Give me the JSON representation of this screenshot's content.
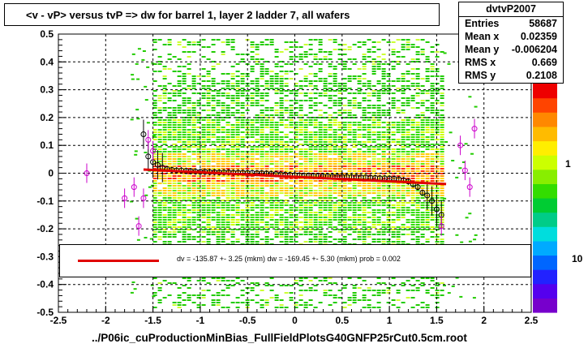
{
  "chart_data": {
    "type": "scatter",
    "title": "<v - vP>       versus  tvP =>  dw for barrel 1, layer 2 ladder 7, all wafers",
    "xlabel": "../P06ic_cuProductionMinBias_FullFieldPlotsG40GNFP25rCut0.5cm.root",
    "ylabel": "",
    "xlim": [
      -2.5,
      2.5
    ],
    "ylim": [
      -0.5,
      0.5
    ],
    "x_ticks": [
      "-2.5",
      "-2",
      "-1.5",
      "-1",
      "-0.5",
      "0",
      "0.5",
      "1",
      "1.5",
      "2",
      "2.5"
    ],
    "y_ticks": [
      "-0.5",
      "-0.4",
      "-0.3",
      "-0.2",
      "-0.1",
      "0",
      "0.1",
      "0.2",
      "0.3",
      "0.4",
      "0.5"
    ],
    "grid": true,
    "colorbar_labels": [
      "1",
      "10"
    ],
    "stats": {
      "name": "dvtvP2007",
      "rows": [
        {
          "label": "Entries",
          "value": "58687"
        },
        {
          "label": "Mean x",
          "value": "0.02359"
        },
        {
          "label": "Mean y",
          "value": "-0.006204"
        },
        {
          "label": "RMS x",
          "value": "0.669"
        },
        {
          "label": "RMS y",
          "value": "0.2108"
        }
      ]
    },
    "fit_text": "dv = -135.87 +- 3.25 (mkm) dw = -169.45 +- 5.30 (mkm) prob = 0.002",
    "fit_line": {
      "color": "#e00000",
      "x": [
        -1.6,
        1.6
      ],
      "y": [
        0.013,
        -0.039
      ]
    },
    "profile_black": {
      "x": [
        -1.6,
        -1.55,
        -1.5,
        -1.45,
        -1.4,
        -1.35,
        -1.3,
        -1.25,
        -1.2,
        -1.15,
        -1.1,
        -1.05,
        -1.0,
        -0.95,
        -0.9,
        -0.85,
        -0.8,
        -0.75,
        -0.7,
        -0.65,
        -0.6,
        -0.55,
        -0.5,
        -0.45,
        -0.4,
        -0.35,
        -0.3,
        -0.25,
        -0.2,
        -0.15,
        -0.1,
        -0.05,
        0.0,
        0.05,
        0.1,
        0.15,
        0.2,
        0.25,
        0.3,
        0.35,
        0.4,
        0.45,
        0.5,
        0.55,
        0.6,
        0.65,
        0.7,
        0.75,
        0.8,
        0.85,
        0.9,
        0.95,
        1.0,
        1.05,
        1.1,
        1.15,
        1.2,
        1.25,
        1.3,
        1.35,
        1.4,
        1.45,
        1.5,
        1.55
      ],
      "y": [
        0.14,
        0.06,
        0.04,
        0.03,
        0.02,
        0.015,
        0.012,
        0.01,
        0.01,
        0.008,
        0.007,
        0.006,
        0.005,
        0.005,
        0.004,
        0.004,
        0.003,
        0.003,
        0.003,
        0.002,
        0.002,
        0.002,
        0.001,
        0.001,
        0.0,
        0.0,
        -0.001,
        -0.002,
        -0.003,
        -0.004,
        -0.005,
        -0.006,
        -0.007,
        -0.008,
        -0.009,
        -0.009,
        -0.01,
        -0.01,
        -0.011,
        -0.011,
        -0.012,
        -0.012,
        -0.013,
        -0.013,
        -0.014,
        -0.014,
        -0.015,
        -0.015,
        -0.016,
        -0.017,
        -0.018,
        -0.018,
        -0.019,
        -0.02,
        -0.022,
        -0.025,
        -0.03,
        -0.04,
        -0.05,
        -0.07,
        -0.08,
        -0.1,
        -0.13,
        -0.15
      ]
    },
    "profile_magenta": {
      "x": [
        -2.2,
        -1.8,
        -1.7,
        -1.65,
        -1.6,
        -1.55,
        -1.5,
        1.55,
        1.75,
        1.8,
        1.85,
        1.9
      ],
      "y": [
        0.0,
        -0.09,
        -0.05,
        -0.19,
        -0.09,
        0.12,
        0.08,
        -0.19,
        0.1,
        0.01,
        -0.05,
        0.16
      ]
    }
  }
}
